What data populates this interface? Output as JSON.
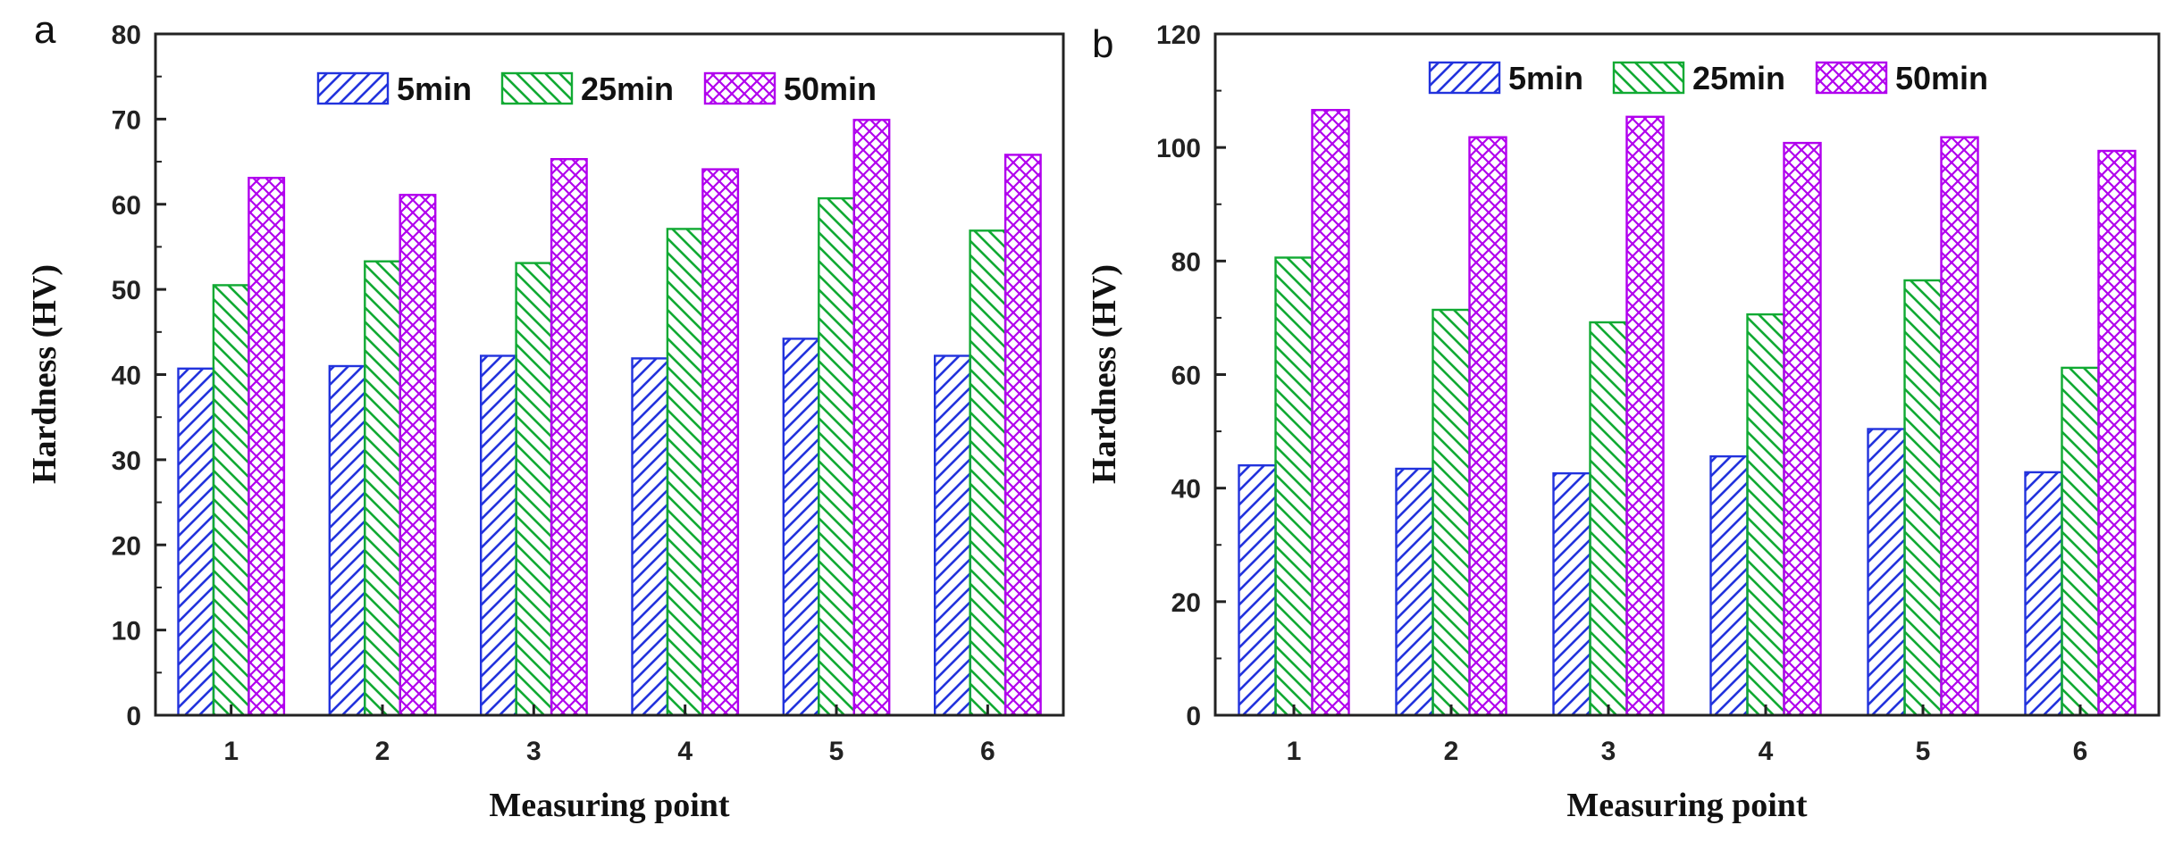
{
  "chart_data": [
    {
      "type": "bar",
      "panel_label": "a",
      "title": "",
      "xlabel": "Measuring point",
      "ylabel": "Hardness (HV)",
      "categories": [
        "1",
        "2",
        "3",
        "4",
        "5",
        "6"
      ],
      "ylim": [
        0,
        80
      ],
      "yticks": [
        0,
        10,
        20,
        30,
        40,
        50,
        60,
        70,
        80
      ],
      "legend_position": "top-center",
      "series": [
        {
          "name": "5min",
          "values": [
            40.7,
            41.0,
            42.2,
            41.9,
            44.2,
            42.2
          ],
          "color": "#2233dd",
          "pattern": "diagonal-forward"
        },
        {
          "name": "25min",
          "values": [
            50.5,
            53.3,
            53.1,
            57.1,
            60.7,
            56.9
          ],
          "color": "#11aa33",
          "pattern": "diagonal-back"
        },
        {
          "name": "50min",
          "values": [
            63.1,
            61.1,
            65.3,
            64.1,
            69.9,
            65.8
          ],
          "color": "#b100ee",
          "pattern": "crosshatch"
        }
      ]
    },
    {
      "type": "bar",
      "panel_label": "b",
      "title": "",
      "xlabel": "Measuring point",
      "ylabel": "Hardness (HV)",
      "categories": [
        "1",
        "2",
        "3",
        "4",
        "5",
        "6"
      ],
      "ylim": [
        0,
        120
      ],
      "yticks": [
        0,
        20,
        40,
        60,
        80,
        100,
        120
      ],
      "legend_position": "top-center",
      "series": [
        {
          "name": "5min",
          "values": [
            44.0,
            43.4,
            42.6,
            45.6,
            50.4,
            42.8
          ],
          "color": "#2233dd",
          "pattern": "diagonal-forward"
        },
        {
          "name": "25min",
          "values": [
            80.6,
            71.4,
            69.2,
            70.6,
            76.6,
            61.2
          ],
          "color": "#11aa33",
          "pattern": "diagonal-back"
        },
        {
          "name": "50min",
          "values": [
            106.6,
            101.8,
            105.4,
            100.8,
            101.8,
            99.4
          ],
          "color": "#b100ee",
          "pattern": "crosshatch"
        }
      ]
    }
  ]
}
